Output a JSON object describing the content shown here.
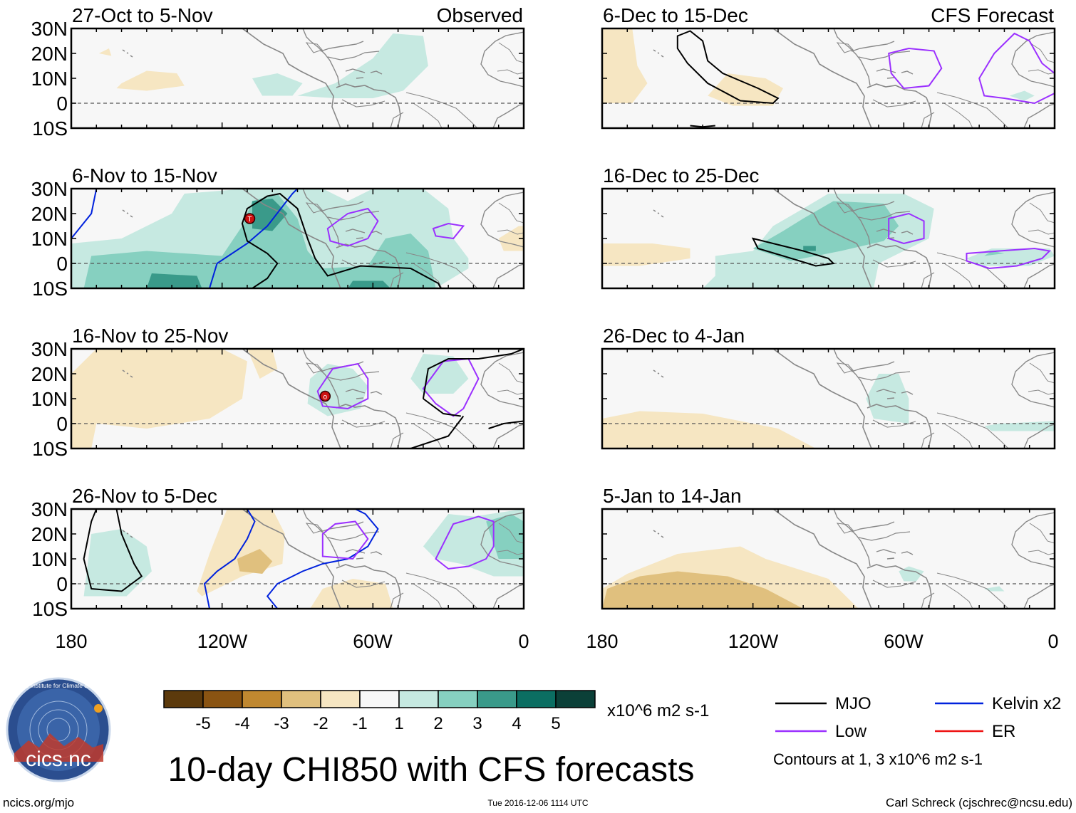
{
  "colors": {
    "land": "#888888",
    "panel_bg": "#f7f7f7",
    "mjo": "#000000",
    "low": "#9b30ff",
    "kelvin": "#0022dd",
    "er": "#ee1111",
    "shade_pos1": "#c6e9e1",
    "shade_pos2": "#86d0c0",
    "shade_pos3": "#3a9a8a",
    "shade_neg1": "#f6e6c2",
    "shade_neg2": "#e0c07e"
  },
  "panels": [
    {
      "id": "p1",
      "title": "27-Oct to 5-Nov",
      "tag": "Observed"
    },
    {
      "id": "p2",
      "title": "6-Nov to 15-Nov",
      "tag": ""
    },
    {
      "id": "p3",
      "title": "16-Nov to 25-Nov",
      "tag": ""
    },
    {
      "id": "p4",
      "title": "26-Nov to 5-Dec",
      "tag": ""
    },
    {
      "id": "p5",
      "title": "6-Dec to 15-Dec",
      "tag": "CFS Forecast"
    },
    {
      "id": "p6",
      "title": "16-Dec to 25-Dec",
      "tag": ""
    },
    {
      "id": "p7",
      "title": "26-Dec to 4-Jan",
      "tag": ""
    },
    {
      "id": "p8",
      "title": "5-Jan to 14-Jan",
      "tag": ""
    }
  ],
  "lat_labels": [
    "30N",
    "20N",
    "10N",
    "0",
    "10S"
  ],
  "lon_labels": [
    "180",
    "120W",
    "60W",
    "0"
  ],
  "colorbar": {
    "colors": [
      "#5c3a0c",
      "#8a5412",
      "#c08830",
      "#e0c07e",
      "#f6e6c2",
      "#f7f7f7",
      "#c6e9e1",
      "#86d0c0",
      "#3a9a8a",
      "#0b6e62",
      "#0b4038"
    ],
    "tick_labels": [
      "-5",
      "-4",
      "-3",
      "-2",
      "-1",
      "1",
      "2",
      "3",
      "4",
      "5"
    ],
    "units": "x10^6 m2 s-1"
  },
  "legend": {
    "items": [
      {
        "label": "MJO",
        "color": "#000000"
      },
      {
        "label": "Kelvin x2",
        "color": "#0022dd"
      },
      {
        "label": "Low",
        "color": "#9b30ff"
      },
      {
        "label": "ER",
        "color": "#ee1111"
      }
    ],
    "note": "Contours at 1, 3 x10^6 m2 s-1"
  },
  "main_title": "10-day CHI850 with CFS forecasts",
  "logo": {
    "arc_text": "Cooperative Institute for Climate and Satellites",
    "name": "cics.nc"
  },
  "footer": {
    "left": "ncics.org/mjo",
    "center": "Tue 2016-12-06 1114 UTC",
    "right": "Carl Schreck (cjschrec@ncsu.edu)"
  },
  "storm_symbols": [
    {
      "panel": "p2",
      "symbol": "T",
      "lon": -109,
      "lat": 18
    },
    {
      "panel": "p3",
      "symbol": "o",
      "lon": -79,
      "lat": 11
    }
  ]
}
